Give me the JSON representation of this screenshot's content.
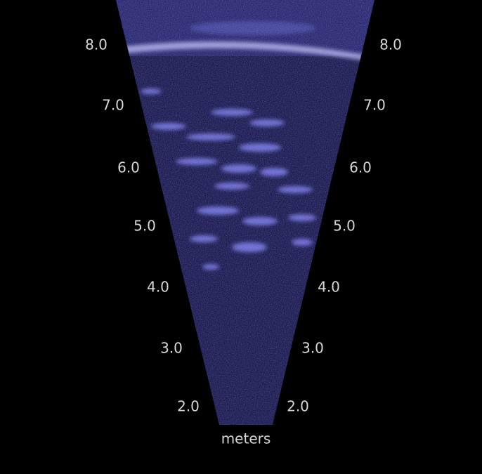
{
  "range_scale": {
    "left_labels": [
      "8.0",
      "7.0",
      "6.0",
      "5.0",
      "4.0",
      "3.0",
      "2.0"
    ],
    "right_labels": [
      "8.0",
      "7.0",
      "6.0",
      "5.0",
      "4.0",
      "3.0",
      "2.0"
    ],
    "unit": "meters"
  }
}
